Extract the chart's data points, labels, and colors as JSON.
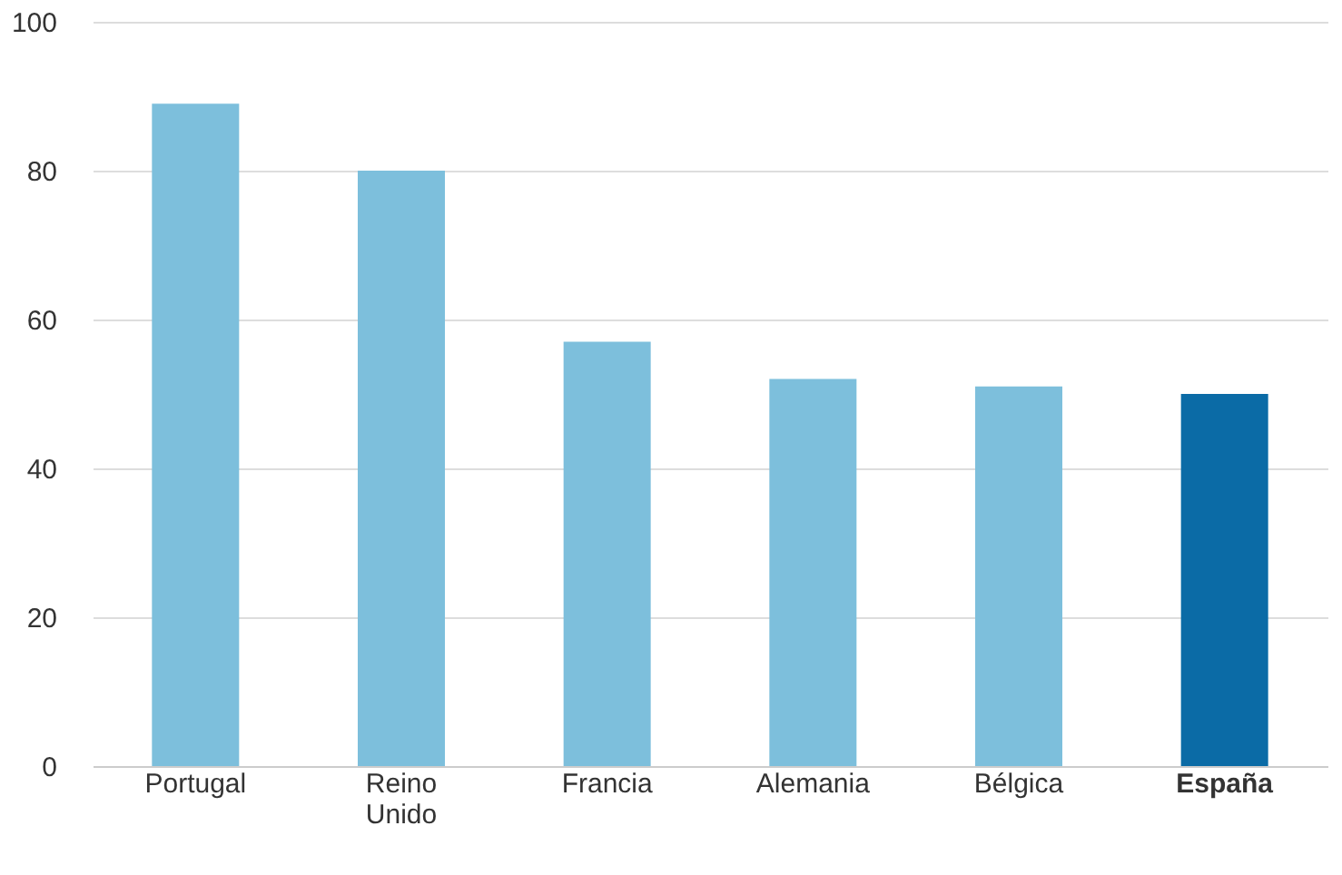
{
  "chart_data": {
    "type": "bar",
    "categories": [
      "Portugal",
      "Reino Unido",
      "Francia",
      "Alemania",
      "Bélgica",
      "España"
    ],
    "values": [
      89,
      80,
      57,
      52,
      51,
      50
    ],
    "colors": [
      "#7dbfdc",
      "#7dbfdc",
      "#7dbfdc",
      "#7dbfdc",
      "#7dbfdc",
      "#0b6ba6"
    ],
    "ylim": [
      0,
      100
    ],
    "yticks": [
      0,
      20,
      40,
      60,
      80,
      100
    ],
    "grid": "y"
  }
}
